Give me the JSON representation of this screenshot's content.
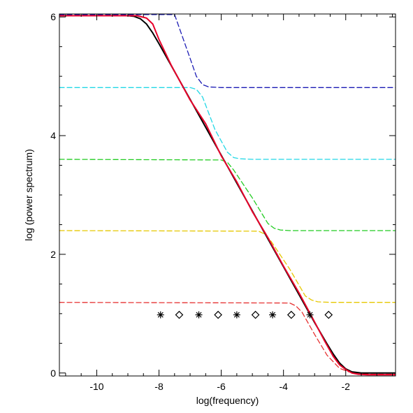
{
  "chart_data": {
    "type": "line",
    "title": "",
    "xlabel": "log(frequency)",
    "ylabel": "log (power spectrum)",
    "xlim": [
      -11.2,
      -0.4
    ],
    "ylim": [
      -0.05,
      6.05
    ],
    "x_ticks": [
      -10,
      -8,
      -6,
      -4,
      -2
    ],
    "x_tick_labels": [
      "-10",
      "-8",
      "-6",
      "-4",
      "-2"
    ],
    "y_ticks": [
      0,
      2,
      4,
      6
    ],
    "y_tick_labels": [
      "0",
      "2",
      "4",
      "6"
    ],
    "grid": false,
    "legend": "none",
    "series": [
      {
        "style": "dashed",
        "color": "#1a1ab4",
        "x": [
          -11.2,
          -7.5,
          -7.0,
          -6.8,
          -6.6,
          -6.4,
          -6.0,
          -0.4
        ],
        "y": [
          6.04,
          6.04,
          5.3,
          5.0,
          4.86,
          4.82,
          4.81,
          4.81
        ]
      },
      {
        "style": "dashed",
        "color": "#22d8e6",
        "x": [
          -11.2,
          -7.0,
          -6.8,
          -6.6,
          -6.2,
          -5.8,
          -5.6,
          -5.4,
          -5.0,
          -0.4
        ],
        "y": [
          4.81,
          4.81,
          4.78,
          4.65,
          4.1,
          3.72,
          3.63,
          3.61,
          3.6,
          3.6
        ]
      },
      {
        "style": "dashed",
        "color": "#22cc22",
        "x": [
          -11.2,
          -6.0,
          -5.8,
          -5.6,
          -5.0,
          -4.5,
          -4.3,
          -4.1,
          -3.8,
          -0.4
        ],
        "y": [
          3.6,
          3.59,
          3.55,
          3.42,
          2.95,
          2.52,
          2.44,
          2.41,
          2.4,
          2.4
        ]
      },
      {
        "style": "dashed",
        "color": "#e6c800",
        "x": [
          -11.2,
          -4.8,
          -4.6,
          -4.4,
          -3.8,
          -3.3,
          -3.1,
          -2.9,
          -2.5,
          -0.4
        ],
        "y": [
          2.4,
          2.39,
          2.34,
          2.22,
          1.75,
          1.3,
          1.23,
          1.2,
          1.19,
          1.19
        ]
      },
      {
        "style": "dashed",
        "color": "#e63232",
        "x": [
          -11.2,
          -3.8,
          -3.6,
          -3.4,
          -3.0,
          -2.6,
          -2.2,
          -1.9,
          -1.6,
          -1.4,
          -1.2,
          -0.4
        ],
        "y": [
          1.19,
          1.18,
          1.13,
          1.02,
          0.65,
          0.3,
          0.08,
          0.02,
          0.0,
          -0.01,
          -0.02,
          -0.02
        ]
      },
      {
        "style": "solid",
        "color": "#000000",
        "x": [
          -11.2,
          -9.0,
          -8.8,
          -8.6,
          -8.4,
          -8.2,
          -8.0,
          -7.0,
          -6.0,
          -5.0,
          -4.0,
          -3.0,
          -2.8,
          -2.6,
          -2.4,
          -2.2,
          -2.0,
          -1.8,
          -1.5,
          -0.4
        ],
        "y": [
          6.02,
          6.02,
          6.01,
          5.97,
          5.88,
          5.73,
          5.55,
          4.61,
          3.67,
          2.73,
          1.79,
          0.85,
          0.67,
          0.49,
          0.32,
          0.17,
          0.07,
          0.02,
          0.0,
          0.0
        ]
      },
      {
        "style": "solid",
        "color": "#e8002a",
        "x": [
          -11.2,
          -9.0,
          -8.7,
          -8.4,
          -8.2,
          -8.0,
          -7.6,
          -7.0,
          -6.5,
          -6.0,
          -5.5,
          -5.0,
          -4.5,
          -4.0,
          -3.5,
          -3.0,
          -2.7,
          -2.4,
          -2.2,
          -2.0,
          -1.8,
          -1.6,
          -1.3,
          -0.4
        ],
        "y": [
          6.02,
          6.02,
          6.02,
          5.98,
          5.88,
          5.62,
          5.18,
          4.6,
          4.2,
          3.66,
          3.22,
          2.72,
          2.28,
          1.8,
          1.35,
          0.86,
          0.56,
          0.28,
          0.14,
          0.06,
          0.0,
          -0.02,
          -0.03,
          -0.03
        ]
      },
      {
        "style": "markers",
        "marker": "asterisk",
        "color": "#000000",
        "x": [
          -7.95,
          -6.72,
          -5.5,
          -4.35,
          -3.15
        ],
        "y": [
          0.98,
          0.98,
          0.98,
          0.98,
          0.98
        ]
      },
      {
        "style": "markers",
        "marker": "diamond",
        "color": "#000000",
        "x": [
          -7.35,
          -6.1,
          -4.9,
          -3.75,
          -2.55
        ],
        "y": [
          0.98,
          0.98,
          0.98,
          0.98,
          0.98
        ]
      }
    ]
  }
}
